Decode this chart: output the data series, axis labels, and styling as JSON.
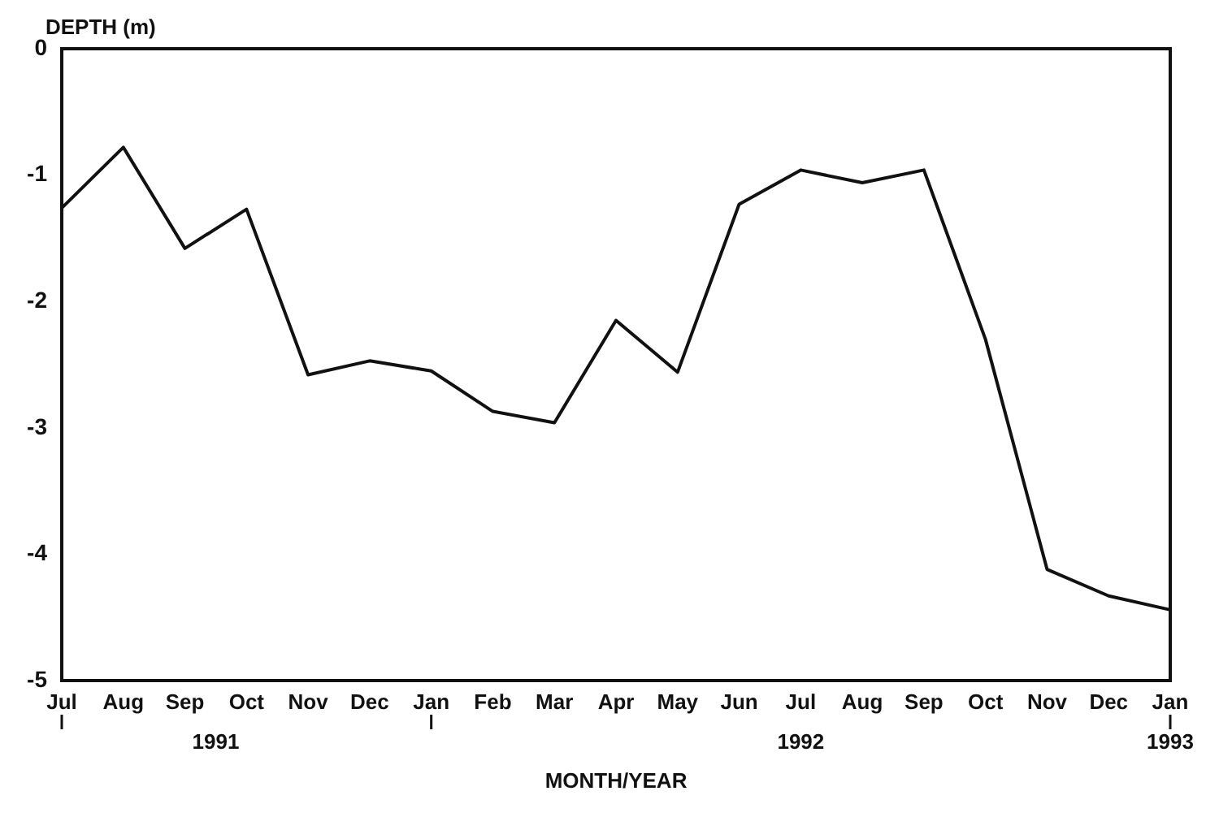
{
  "chart_data": {
    "type": "line",
    "ylabel": "DEPTH (m)",
    "xlabel": "MONTH/YEAR",
    "categories": [
      "Jul",
      "Aug",
      "Sep",
      "Oct",
      "Nov",
      "Dec",
      "Jan",
      "Feb",
      "Mar",
      "Apr",
      "May",
      "Jun",
      "Jul",
      "Aug",
      "Sep",
      "Oct",
      "Nov",
      "Dec",
      "Jan"
    ],
    "series": [
      {
        "color": "#111111",
        "values": [
          -1.26,
          -0.78,
          -1.58,
          -1.27,
          -2.58,
          -2.47,
          -2.55,
          -2.87,
          -2.96,
          -2.15,
          -2.56,
          -1.23,
          -0.96,
          -1.06,
          -0.96,
          -2.3,
          -4.12,
          -4.33,
          -4.44
        ]
      }
    ],
    "ylim": [
      -5,
      0
    ],
    "yticks": [
      -5,
      -4,
      -3,
      -2,
      -1,
      0
    ],
    "grid": false,
    "legend": false,
    "marker": "none",
    "line_style": "solid",
    "annotations": [
      "1991",
      "1992",
      "1993"
    ]
  }
}
